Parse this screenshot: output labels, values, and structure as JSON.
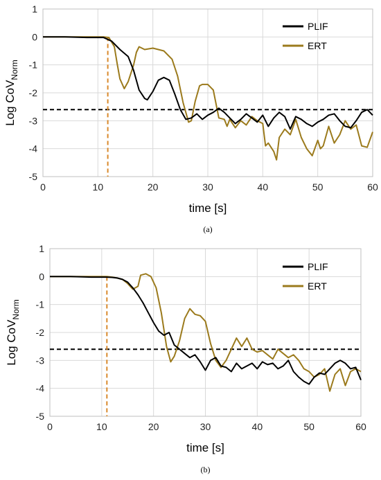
{
  "chart_data": [
    {
      "type": "line",
      "panel_label": "(a)",
      "xlabel": "time [s]",
      "ylabel_main": "Log CoV",
      "ylabel_sub": "Norm",
      "xlim": [
        0,
        60
      ],
      "ylim": [
        -5,
        1
      ],
      "xticks": [
        0,
        10,
        20,
        30,
        40,
        50,
        60
      ],
      "yticks": [
        1,
        0,
        -1,
        -2,
        -3,
        -4,
        -5
      ],
      "grid": true,
      "legend_position": "top-right",
      "reference_line_y": -2.6,
      "vertical_marker_x": 11.8,
      "series": [
        {
          "name": "PLIF",
          "color": "#000000",
          "x": [
            0,
            4,
            8,
            11,
            12.5,
            14,
            15.5,
            16.5,
            17.5,
            18.5,
            19,
            20,
            21,
            22,
            23,
            24,
            25,
            26,
            27,
            28,
            29,
            30,
            31,
            32,
            33,
            34,
            35,
            36,
            37,
            38,
            39,
            40,
            41,
            42,
            43,
            44,
            45,
            46,
            47,
            48,
            49,
            50,
            51,
            52,
            53,
            54,
            55,
            56,
            57,
            58,
            59,
            60
          ],
          "values": [
            0,
            0,
            -0.02,
            -0.02,
            -0.15,
            -0.45,
            -0.7,
            -1.2,
            -1.9,
            -2.2,
            -2.25,
            -1.95,
            -1.55,
            -1.45,
            -1.55,
            -2.05,
            -2.6,
            -2.95,
            -2.9,
            -2.75,
            -2.95,
            -2.8,
            -2.7,
            -2.55,
            -2.7,
            -2.9,
            -3.1,
            -2.95,
            -2.75,
            -2.9,
            -3.05,
            -2.8,
            -3.2,
            -2.9,
            -2.7,
            -2.85,
            -3.3,
            -2.85,
            -2.95,
            -3.1,
            -3.2,
            -3.05,
            -2.95,
            -2.8,
            -2.75,
            -3.0,
            -3.2,
            -3.25,
            -3.0,
            -2.7,
            -2.6,
            -2.8
          ]
        },
        {
          "name": "ERT",
          "color": "#9b7a1c",
          "x": [
            0,
            4,
            8,
            11,
            12,
            13,
            13.5,
            14,
            14.8,
            15.5,
            16.5,
            17,
            17.5,
            18.5,
            20,
            22,
            23.5,
            24.5,
            25.5,
            26.5,
            27,
            27.7,
            28.5,
            29,
            30,
            31,
            32,
            33,
            33.5,
            34,
            35,
            36,
            37,
            38,
            39,
            40,
            40.5,
            41,
            42,
            42.5,
            43,
            44,
            45,
            46,
            47,
            48,
            49,
            50,
            50.5,
            51,
            52,
            53,
            54,
            55,
            56,
            57,
            58,
            59,
            60
          ],
          "values": [
            0,
            0,
            0,
            0,
            -0.02,
            -0.35,
            -0.95,
            -1.5,
            -1.85,
            -1.6,
            -1.0,
            -0.55,
            -0.35,
            -0.45,
            -0.4,
            -0.5,
            -0.8,
            -1.4,
            -2.35,
            -3.05,
            -3.0,
            -2.3,
            -1.75,
            -1.7,
            -1.7,
            -1.9,
            -2.9,
            -2.95,
            -3.2,
            -2.95,
            -3.25,
            -3.0,
            -3.15,
            -2.85,
            -3.0,
            -3.1,
            -3.9,
            -3.8,
            -4.1,
            -4.4,
            -3.6,
            -3.3,
            -3.5,
            -2.95,
            -3.6,
            -4.0,
            -4.25,
            -3.7,
            -4.0,
            -3.9,
            -3.2,
            -3.8,
            -3.5,
            -3.0,
            -3.3,
            -3.15,
            -3.9,
            -3.95,
            -3.4
          ]
        }
      ]
    },
    {
      "type": "line",
      "panel_label": "(b)",
      "xlabel": "time [s]",
      "ylabel_main": "Log CoV",
      "ylabel_sub": "Norm",
      "xlim": [
        0,
        60
      ],
      "ylim": [
        -5,
        1
      ],
      "xticks": [
        0,
        10,
        20,
        30,
        40,
        50,
        60
      ],
      "yticks": [
        1,
        0,
        -1,
        -2,
        -3,
        -4,
        -5
      ],
      "grid": true,
      "legend_position": "top-right",
      "reference_line_y": -2.6,
      "vertical_marker_x": 11.0,
      "series": [
        {
          "name": "PLIF",
          "color": "#000000",
          "x": [
            0,
            4,
            8,
            11,
            12,
            13,
            14,
            15,
            16,
            17,
            18,
            19,
            20,
            21,
            22,
            23,
            24,
            25,
            26,
            27,
            28,
            29,
            30,
            31,
            32,
            33,
            34,
            35,
            36,
            37,
            38,
            39,
            40,
            41,
            42,
            43,
            44,
            45,
            46,
            47,
            48,
            49,
            50,
            51,
            52,
            53,
            54,
            55,
            56,
            57,
            58,
            59,
            60
          ],
          "values": [
            0,
            0,
            -0.02,
            -0.02,
            -0.03,
            -0.05,
            -0.1,
            -0.2,
            -0.4,
            -0.65,
            -0.95,
            -1.3,
            -1.65,
            -1.95,
            -2.1,
            -2.0,
            -2.45,
            -2.6,
            -2.75,
            -2.9,
            -2.8,
            -3.05,
            -3.35,
            -3.0,
            -2.9,
            -3.2,
            -3.25,
            -3.4,
            -3.1,
            -3.3,
            -3.2,
            -3.1,
            -3.3,
            -3.05,
            -3.15,
            -3.1,
            -3.3,
            -3.2,
            -3.0,
            -3.4,
            -3.6,
            -3.75,
            -3.85,
            -3.6,
            -3.45,
            -3.5,
            -3.3,
            -3.1,
            -3.0,
            -3.1,
            -3.3,
            -3.25,
            -3.7
          ]
        },
        {
          "name": "ERT",
          "color": "#9b7a1c",
          "x": [
            0,
            4,
            8,
            11,
            12,
            13,
            14,
            15,
            16,
            17,
            17.5,
            18.5,
            19.5,
            20.5,
            21.5,
            22.5,
            23.3,
            24,
            25,
            26,
            27,
            28,
            29,
            30,
            31,
            32,
            33,
            34,
            35,
            36,
            37,
            38,
            39,
            40,
            41,
            42,
            43,
            44,
            45,
            46,
            47,
            48,
            49,
            50,
            51,
            52,
            53,
            54,
            55,
            56,
            57,
            58,
            59,
            60
          ],
          "values": [
            0,
            0,
            0,
            0,
            -0.02,
            -0.05,
            -0.1,
            -0.25,
            -0.45,
            -0.35,
            0.05,
            0.1,
            0.0,
            -0.4,
            -1.3,
            -2.5,
            -3.05,
            -2.85,
            -2.3,
            -1.5,
            -1.15,
            -1.35,
            -1.4,
            -1.6,
            -2.4,
            -3.0,
            -3.25,
            -3.0,
            -2.6,
            -2.2,
            -2.5,
            -2.2,
            -2.6,
            -2.7,
            -2.65,
            -2.8,
            -2.95,
            -2.6,
            -2.75,
            -2.9,
            -2.8,
            -3.0,
            -3.3,
            -3.4,
            -3.6,
            -3.5,
            -3.3,
            -4.1,
            -3.5,
            -3.3,
            -3.9,
            -3.4,
            -3.3,
            -3.4
          ]
        }
      ]
    }
  ]
}
